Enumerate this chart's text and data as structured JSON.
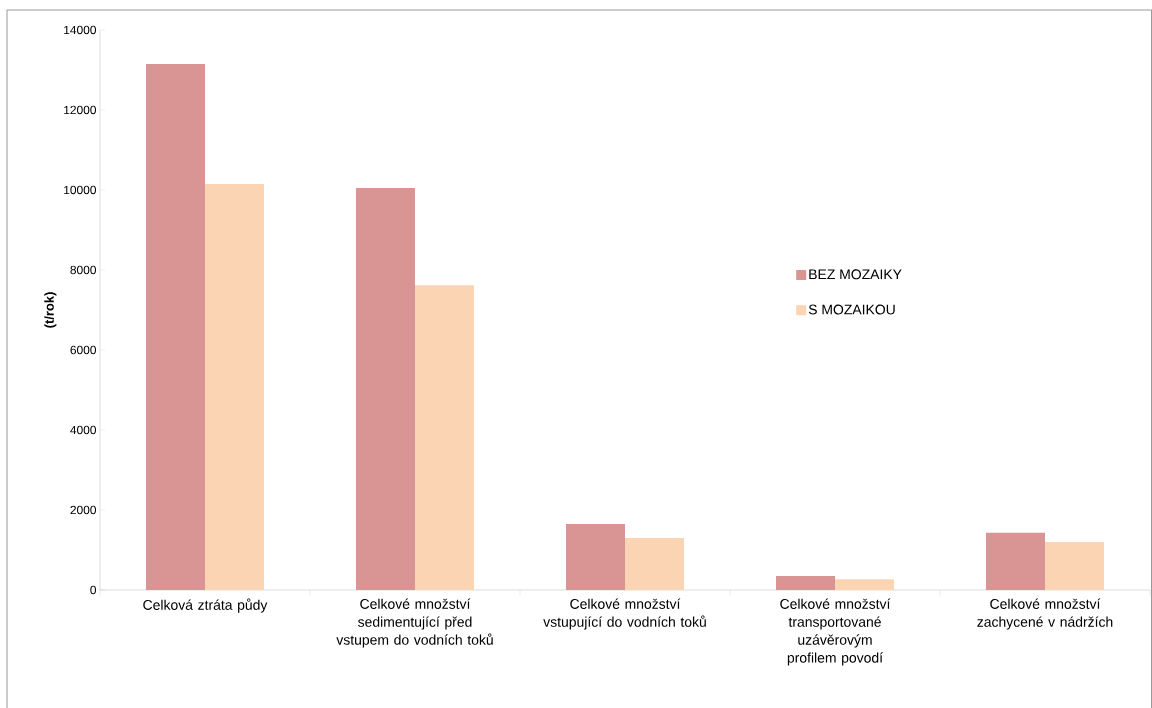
{
  "chart_data": {
    "type": "bar",
    "ylabel": "(t/rok)",
    "categories": [
      "Celková ztráta půdy",
      "Celkové množství sedimentující před vstupem do vodních toků",
      "Celkové množství vstupující do vodních toků",
      "Celkové množství transportované uzávěrovým profilem povodí",
      "Celkové množství zachycené v nádržích"
    ],
    "series": [
      {
        "name": "BEZ MOZAIKY",
        "color": "#d99594",
        "values": [
          13150,
          10050,
          1650,
          350,
          1430
        ]
      },
      {
        "name": "S MOZAIKOU",
        "color": "#fbd4b4",
        "values": [
          10150,
          7620,
          1300,
          270,
          1200
        ]
      }
    ],
    "ylim": [
      0,
      14000
    ],
    "yticks": [
      0,
      2000,
      4000,
      6000,
      8000,
      10000,
      12000,
      14000
    ],
    "grid": false,
    "legend": "right"
  }
}
